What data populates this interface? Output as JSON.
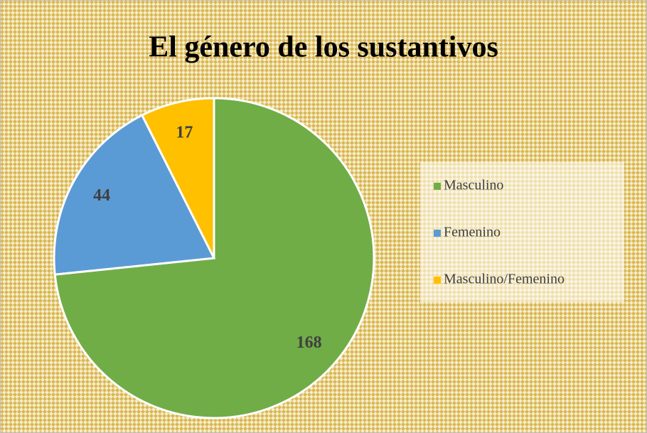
{
  "chart_data": {
    "type": "pie",
    "title": "El género de los sustantivos",
    "categories": [
      "Masculino",
      "Femenino",
      "Masculino/Femenino"
    ],
    "values": [
      168,
      44,
      17
    ],
    "colors": [
      "#70ad47",
      "#5b9bd5",
      "#ffc000"
    ],
    "legend": "right"
  }
}
